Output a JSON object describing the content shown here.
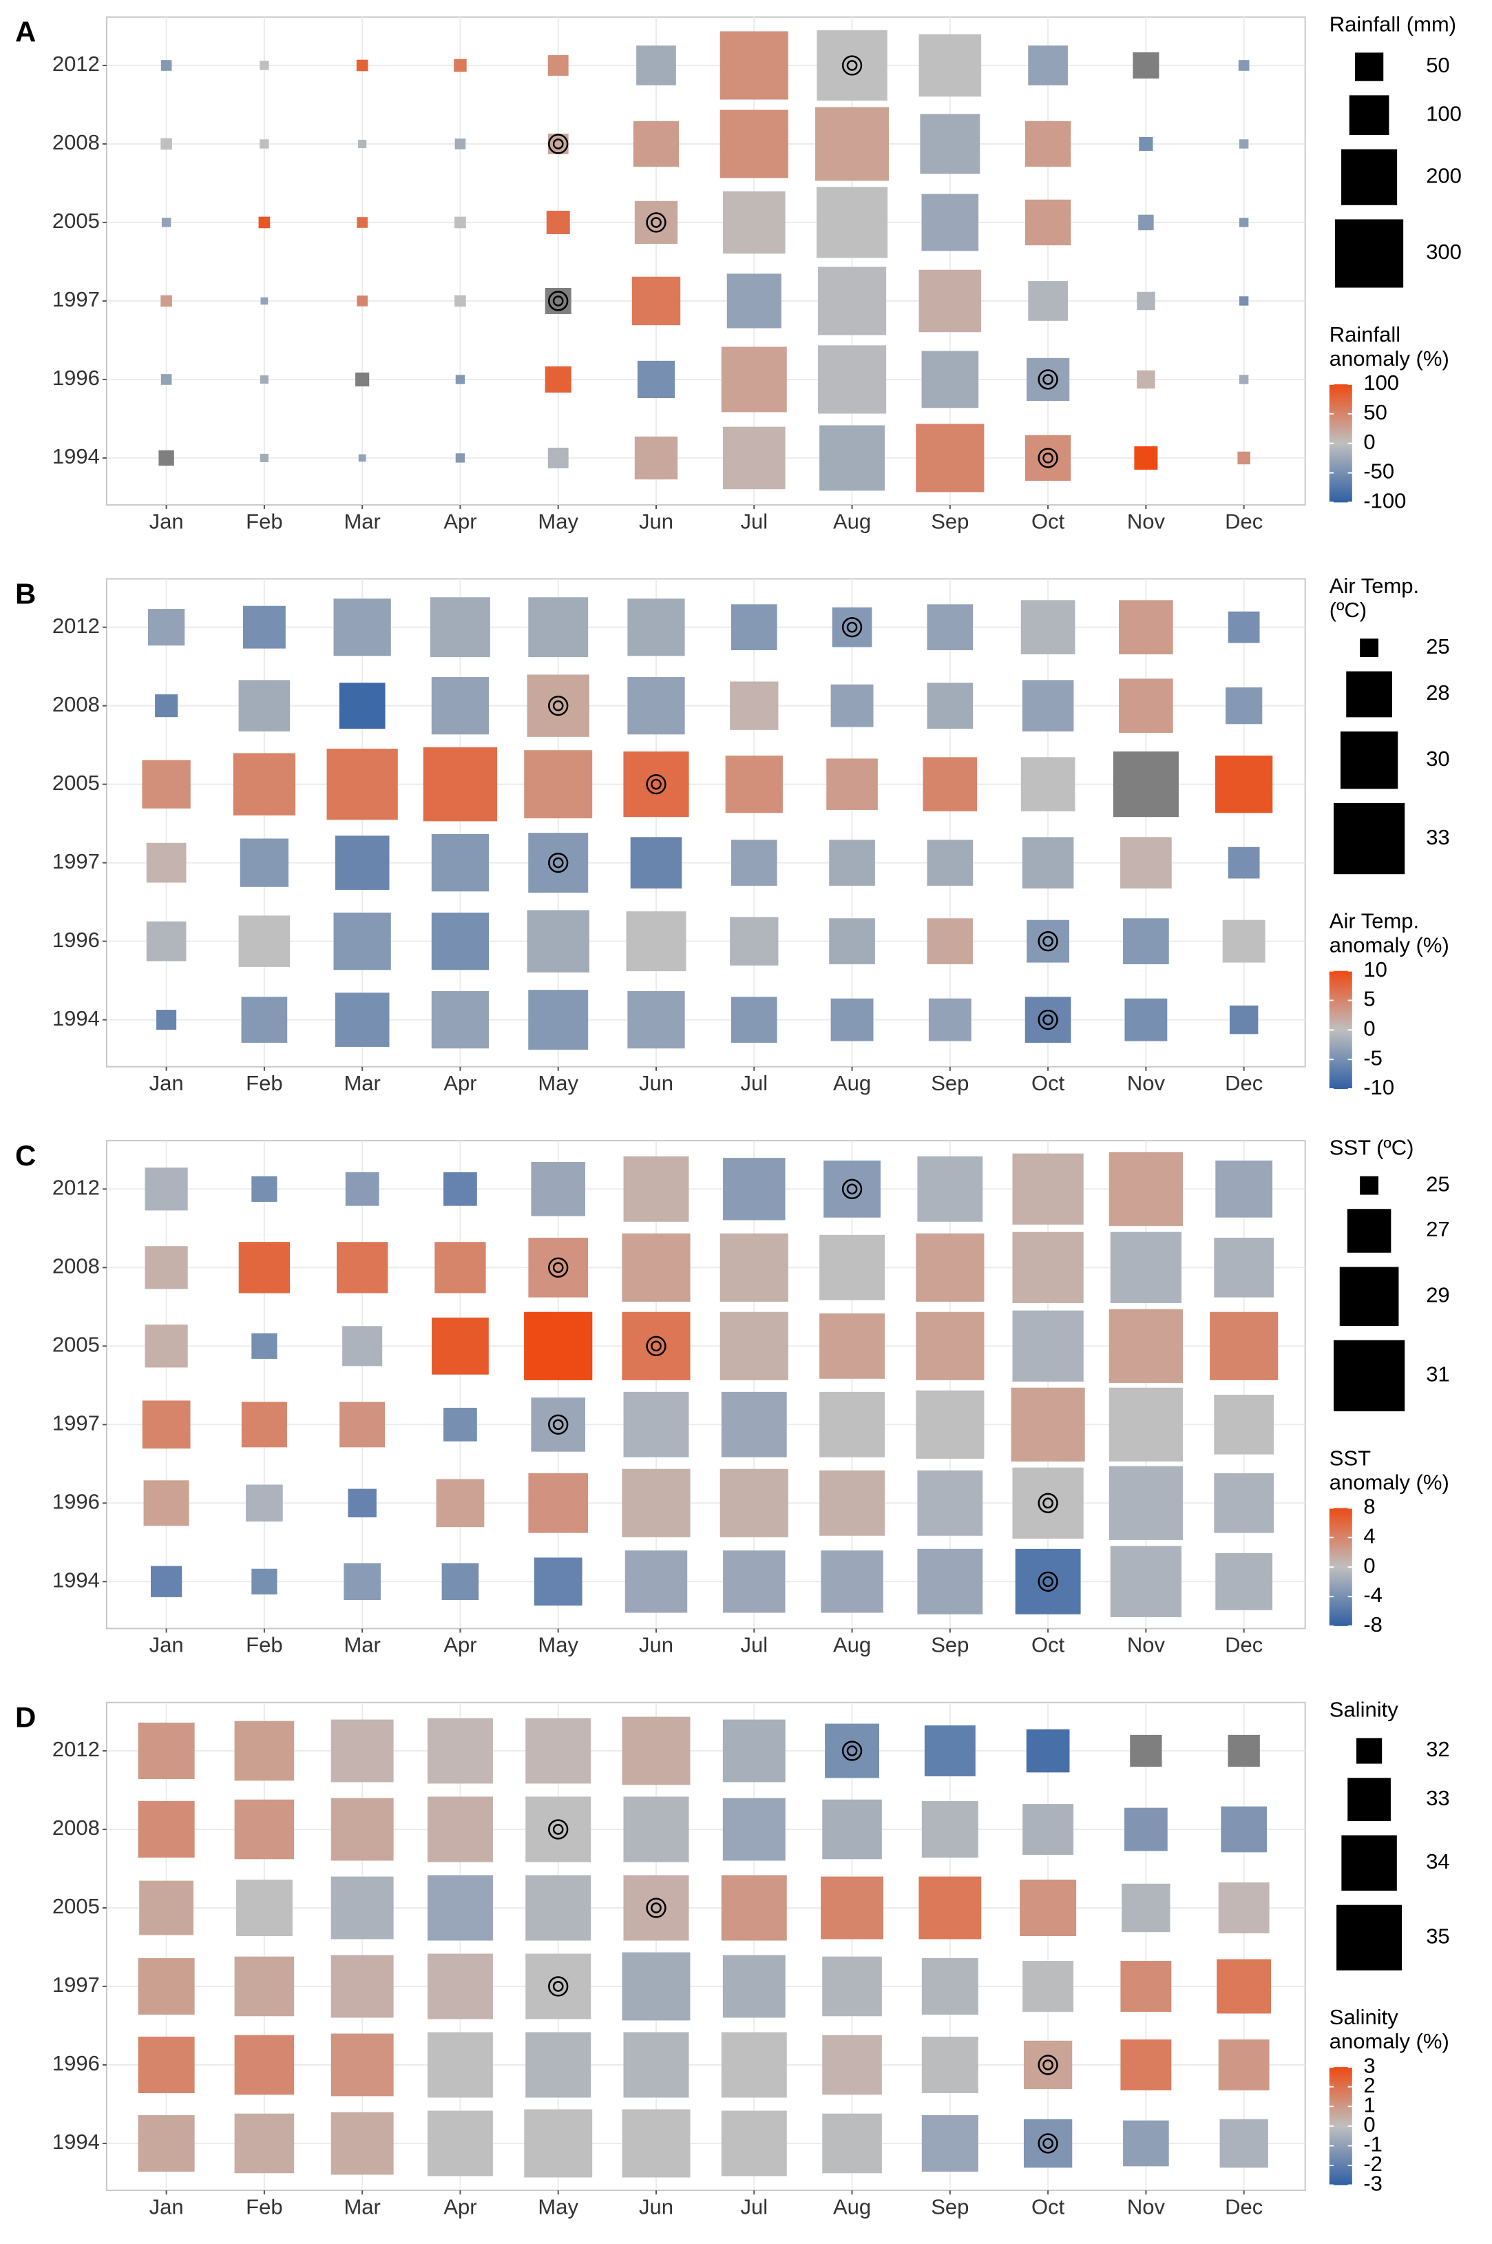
{
  "chart_data": [
    {
      "type": "tile",
      "label": "A",
      "months": [
        "Jan",
        "Feb",
        "Mar",
        "Apr",
        "May",
        "Jun",
        "Jul",
        "Aug",
        "Sep",
        "Oct",
        "Nov",
        "Dec"
      ],
      "years": [
        "2012",
        "2008",
        "2005",
        "1997",
        "1996",
        "1994"
      ],
      "size_title": [
        "Rainfall (mm)"
      ],
      "size_ticks": [
        50,
        100,
        200,
        300
      ],
      "color_title": [
        "Rainfall",
        "anomaly (%)"
      ],
      "color_lim": [
        -100,
        100
      ],
      "color_ticks": [
        100,
        50,
        0,
        -50,
        -100
      ],
      "colors": {
        "low": "#2f5fa3",
        "mid": "#bfbfbf",
        "high": "#ee4a14",
        "na": "#7f7f7f"
      },
      "sizes": [
        [
          5,
          3,
          6,
          8,
          25,
          100,
          300,
          320,
          250,
          100,
          42,
          5
        ],
        [
          6,
          3,
          2,
          5,
          25,
          133,
          300,
          350,
          230,
          133,
          10,
          3
        ],
        [
          3,
          6,
          5,
          6,
          33,
          117,
          250,
          325,
          208,
          133,
          13,
          3
        ],
        [
          6,
          1,
          5,
          6,
          42,
          150,
          190,
          300,
          250,
          100,
          19,
          3
        ],
        [
          5,
          2,
          10,
          3,
          42,
          88,
          275,
          300,
          208,
          117,
          19,
          3
        ],
        [
          13,
          2,
          1,
          3,
          25,
          117,
          250,
          275,
          300,
          133,
          33,
          8
        ]
      ],
      "anomalies": [
        [
          -40,
          0,
          80,
          60,
          40,
          -20,
          40,
          0,
          0,
          -30,
          null,
          -40
        ],
        [
          0,
          0,
          -10,
          -20,
          20,
          30,
          40,
          25,
          -20,
          30,
          -50,
          -30
        ],
        [
          -30,
          90,
          70,
          0,
          70,
          20,
          5,
          0,
          -25,
          30,
          -40,
          -40
        ],
        [
          30,
          -30,
          50,
          0,
          null,
          60,
          -30,
          -5,
          15,
          -10,
          -10,
          -50
        ],
        [
          -30,
          -20,
          null,
          -40,
          80,
          -50,
          25,
          -5,
          -20,
          -30,
          10,
          -20
        ],
        [
          null,
          -20,
          -30,
          -40,
          -10,
          20,
          10,
          -20,
          50,
          40,
          100,
          40
        ]
      ],
      "highlights": [
        [
          "2012",
          "Aug"
        ],
        [
          "2008",
          "May"
        ],
        [
          "2005",
          "Jun"
        ],
        [
          "1997",
          "May"
        ],
        [
          "1996",
          "Oct"
        ],
        [
          "1994",
          "Oct"
        ]
      ]
    },
    {
      "type": "tile",
      "label": "B",
      "months": [
        "Jan",
        "Feb",
        "Mar",
        "Apr",
        "May",
        "Jun",
        "Jul",
        "Aug",
        "Sep",
        "Oct",
        "Nov",
        "Dec"
      ],
      "years": [
        "2012",
        "2008",
        "2005",
        "1997",
        "1996",
        "1994"
      ],
      "size_title": [
        "Air Temp.",
        "(ºC)"
      ],
      "size_ticks": [
        25,
        28,
        30,
        33
      ],
      "color_title": [
        "Air Temp.",
        "anomaly (%)"
      ],
      "color_lim": [
        -10,
        10
      ],
      "color_ticks": [
        10,
        5,
        0,
        -5,
        -10
      ],
      "colors": {
        "low": "#2f5fa3",
        "mid": "#bfbfbf",
        "high": "#ee4a14",
        "na": "#7f7f7f"
      },
      "sizes": [
        [
          26.7,
          27.5,
          30,
          30.5,
          30.5,
          30,
          28,
          27.1,
          28,
          29.4,
          29.4,
          26.1
        ],
        [
          25.3,
          28.9,
          28,
          30,
          31,
          30,
          28.4,
          27.5,
          28,
          28.9,
          29.4,
          26.7
        ],
        [
          28.4,
          31,
          33,
          33.7,
          32.3,
          31.7,
          30,
          28.9,
          29.4,
          29.4,
          31.7,
          30
        ],
        [
          27.1,
          28.4,
          29.4,
          30,
          30.5,
          28.9,
          28,
          28,
          28,
          28.9,
          28.9,
          26.1
        ],
        [
          27.1,
          28.9,
          30,
          30,
          31,
          30.5,
          28.4,
          28,
          28,
          27.5,
          28,
          27.5
        ],
        [
          25.1,
          28,
          29.4,
          30,
          30.5,
          30,
          28,
          27.5,
          27.5,
          28,
          27.5,
          25.8
        ]
      ],
      "anomalies": [
        [
          -3,
          -5,
          -3,
          -2,
          -2,
          -2,
          -4,
          -4,
          -3,
          -1,
          3,
          -5
        ],
        [
          -6,
          -2,
          -9,
          -3,
          2,
          -3,
          1,
          -3,
          -2,
          -3,
          3,
          -4
        ],
        [
          4,
          5,
          6,
          7,
          4,
          7,
          4,
          3,
          5,
          0,
          null,
          9
        ],
        [
          1,
          -4,
          -6,
          -4,
          -4,
          -6,
          -3,
          -2,
          -2,
          -2,
          1,
          -5
        ],
        [
          -1,
          0,
          -4,
          -5,
          -2,
          0,
          -1,
          -2,
          2,
          -4,
          -4,
          0
        ],
        [
          -6,
          -4,
          -5,
          -3,
          -4,
          -3,
          -4,
          -4,
          -3,
          -6,
          -5,
          -6
        ]
      ],
      "highlights": [
        [
          "2012",
          "Aug"
        ],
        [
          "2008",
          "May"
        ],
        [
          "2005",
          "Jun"
        ],
        [
          "1997",
          "May"
        ],
        [
          "1996",
          "Oct"
        ],
        [
          "1994",
          "Oct"
        ]
      ]
    },
    {
      "type": "tile",
      "label": "C",
      "months": [
        "Jan",
        "Feb",
        "Mar",
        "Apr",
        "May",
        "Jun",
        "Jul",
        "Aug",
        "Sep",
        "Oct",
        "Nov",
        "Dec"
      ],
      "years": [
        "2012",
        "2008",
        "2005",
        "1997",
        "1996",
        "1994"
      ],
      "size_title": [
        "SST (ºC)"
      ],
      "size_ticks": [
        25,
        27,
        29,
        31
      ],
      "color_title": [
        "SST",
        "anomaly (%)"
      ],
      "color_lim": [
        -8,
        8
      ],
      "color_ticks": [
        8,
        4,
        0,
        -4,
        -8
      ],
      "colors": {
        "low": "#2f5fa3",
        "mid": "#bfbfbf",
        "high": "#ee4a14",
        "na": "#7f7f7f"
      },
      "sizes": [
        [
          26.9,
          25.4,
          26,
          26,
          28.3,
          30,
          29.5,
          28.7,
          30,
          31,
          31.5,
          28.7
        ],
        [
          26.9,
          27.9,
          27.9,
          27.9,
          29.1,
          30.5,
          30.5,
          30,
          30.5,
          31,
          31,
          29.1
        ],
        [
          26.9,
          25.4,
          26.6,
          28.7,
          30.5,
          30.5,
          30.5,
          30,
          30.5,
          31,
          31.5,
          30.5
        ],
        [
          27.5,
          27.2,
          27.2,
          26,
          28.3,
          30,
          30,
          30,
          30.5,
          31.5,
          31.5,
          29.1
        ],
        [
          27.2,
          26.3,
          25.6,
          27.5,
          29.1,
          30.5,
          30.5,
          30,
          30,
          31,
          31.5,
          29.1
        ],
        [
          25.8,
          25.4,
          26.3,
          26.3,
          27.5,
          29.5,
          29.5,
          29.5,
          30,
          30,
          31,
          28.7
        ]
      ],
      "anomalies": [
        [
          -1,
          -4,
          -3,
          -5,
          -2,
          1,
          -3,
          -3,
          -1,
          1,
          2,
          -2
        ],
        [
          1,
          6,
          5,
          4,
          3,
          2,
          1,
          0,
          2,
          1,
          -1,
          -1
        ],
        [
          1,
          -4,
          -1,
          7,
          8,
          5,
          1,
          2,
          2,
          -1,
          2,
          4
        ],
        [
          4,
          4,
          3,
          -4,
          -2,
          -1,
          -2,
          0,
          0,
          2,
          0,
          0
        ],
        [
          2,
          -1,
          -5,
          2,
          3,
          1,
          1,
          1,
          -1,
          0,
          -1,
          -1
        ],
        [
          -5,
          -4,
          -3,
          -4,
          -5,
          -2,
          -2,
          -2,
          -2,
          -6,
          -1,
          -1
        ]
      ],
      "highlights": [
        [
          "2012",
          "Aug"
        ],
        [
          "2008",
          "May"
        ],
        [
          "2005",
          "Jun"
        ],
        [
          "1997",
          "May"
        ],
        [
          "1996",
          "Oct"
        ],
        [
          "1994",
          "Oct"
        ]
      ]
    },
    {
      "type": "tile",
      "label": "D",
      "months": [
        "Jan",
        "Feb",
        "Mar",
        "Apr",
        "May",
        "Jun",
        "Jul",
        "Aug",
        "Sep",
        "Oct",
        "Nov",
        "Dec"
      ],
      "years": [
        "2012",
        "2008",
        "2005",
        "1997",
        "1996",
        "1994"
      ],
      "size_title": [
        "Salinity"
      ],
      "size_ticks": [
        32,
        33,
        34,
        35
      ],
      "color_title": [
        "Salinity",
        "anomaly (%)"
      ],
      "color_lim": [
        -3,
        3
      ],
      "color_ticks": [
        3,
        2,
        1,
        0,
        -1,
        -2,
        -3
      ],
      "colors": {
        "low": "#2f5fa3",
        "mid": "#bfbfbf",
        "high": "#ee4a14",
        "na": "#7f7f7f"
      },
      "sizes": [
        [
          34.1,
          34.4,
          34.7,
          35,
          35,
          35.3,
          34.7,
          33.9,
          33.6,
          33,
          32.3,
          32.3
        ],
        [
          34.1,
          34.4,
          34.7,
          35,
          35,
          35,
          34.7,
          34.4,
          34.1,
          33.6,
          33,
          33.2
        ],
        [
          33.9,
          34.1,
          34.7,
          35,
          35,
          35,
          35,
          34.7,
          34.7,
          34.1,
          33.4,
          33.6
        ],
        [
          34.1,
          34.4,
          34.7,
          35,
          35,
          35.3,
          34.7,
          34.4,
          34.1,
          33.6,
          33.6,
          33.9
        ],
        [
          34.1,
          34.4,
          34.7,
          35,
          35,
          35,
          35,
          34.4,
          34.1,
          33.4,
          33.6,
          33.6
        ],
        [
          34.1,
          34.4,
          34.7,
          35,
          35.3,
          35.3,
          35,
          34.4,
          34.1,
          33.4,
          33.2,
          33.4
        ]
      ],
      "anomalies": [
        [
          1,
          0.8,
          0.3,
          0.2,
          0.2,
          0.5,
          -0.5,
          -1.5,
          -2,
          -2.5,
          null,
          null
        ],
        [
          1.3,
          1,
          0.6,
          0.4,
          0,
          -0.3,
          -0.8,
          -0.5,
          -0.3,
          -0.4,
          -1.3,
          -1.3
        ],
        [
          0.6,
          0,
          -0.4,
          -0.8,
          -0.3,
          0.4,
          1,
          1.5,
          1.8,
          1.1,
          -0.3,
          0.2
        ],
        [
          0.8,
          0.6,
          0.4,
          0.3,
          0,
          -0.6,
          -0.5,
          -0.3,
          -0.3,
          -0.1,
          1.3,
          1.8
        ],
        [
          1.5,
          1.4,
          1.1,
          0,
          -0.3,
          -0.3,
          0,
          0.3,
          -0.1,
          0.7,
          1.7,
          1
        ],
        [
          0.6,
          0.5,
          0.5,
          0,
          0,
          0,
          0,
          -0.1,
          -0.8,
          -1.3,
          -1,
          -0.4
        ]
      ],
      "highlights": [
        [
          "2012",
          "Aug"
        ],
        [
          "2008",
          "May"
        ],
        [
          "2005",
          "Jun"
        ],
        [
          "1997",
          "May"
        ],
        [
          "1996",
          "Oct"
        ],
        [
          "1994",
          "Oct"
        ]
      ]
    }
  ]
}
